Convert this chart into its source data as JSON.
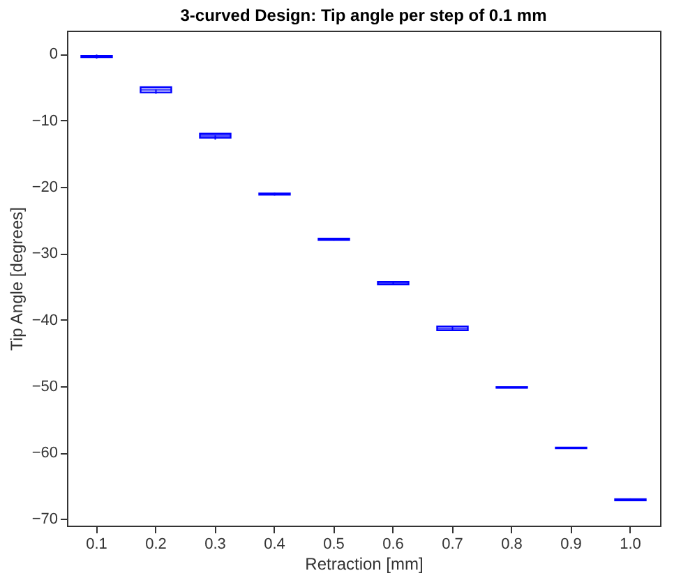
{
  "chart_data": {
    "type": "box",
    "title": "3-curved Design: Tip angle per step of 0.1 mm",
    "xlabel": "Retraction [mm]",
    "ylabel": "Tip Angle [degrees]",
    "categories": [
      "0.1",
      "0.2",
      "0.3",
      "0.4",
      "0.5",
      "0.6",
      "0.7",
      "0.8",
      "0.9",
      "1.0"
    ],
    "series": [
      {
        "color": "#0000ff",
        "boxes": [
          {
            "low": -0.7,
            "q1": -0.5,
            "median": -0.4,
            "q3": -0.3,
            "high": -0.1
          },
          {
            "low": -6.0,
            "q1": -5.8,
            "median": -5.4,
            "q3": -5.0,
            "high": -4.9
          },
          {
            "low": -12.9,
            "q1": -12.6,
            "median": -12.3,
            "q3": -12.0,
            "high": -11.9
          },
          {
            "low": -21.3,
            "q1": -21.2,
            "median": -21.1,
            "q3": -21.0,
            "high": -20.9
          },
          {
            "low": -28.1,
            "q1": -28.0,
            "median": -27.9,
            "q3": -27.8,
            "high": -27.7
          },
          {
            "low": -34.8,
            "q1": -34.7,
            "median": -34.5,
            "q3": -34.3,
            "high": -34.2
          },
          {
            "low": -41.7,
            "q1": -41.6,
            "median": -41.3,
            "q3": -41.0,
            "high": -40.9
          },
          {
            "low": -50.3,
            "q1": -50.25,
            "median": -50.2,
            "q3": -50.15,
            "high": -50.1
          },
          {
            "low": -59.4,
            "q1": -59.35,
            "median": -59.3,
            "q3": -59.25,
            "high": -59.2
          },
          {
            "low": -67.3,
            "q1": -67.2,
            "median": -67.1,
            "q3": -67.0,
            "high": -66.9
          }
        ]
      }
    ],
    "ylim": [
      -71,
      3.5
    ],
    "yticks": [
      0,
      -10,
      -20,
      -30,
      -40,
      -50,
      -60,
      -70
    ],
    "grid": false
  }
}
